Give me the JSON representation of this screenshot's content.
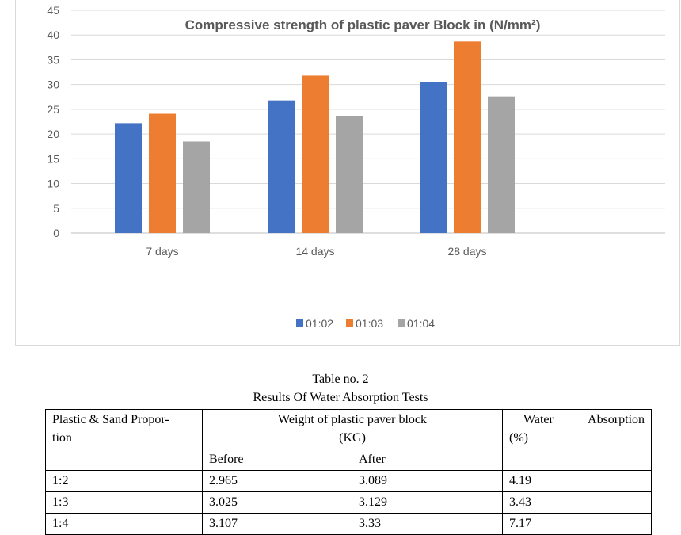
{
  "chart_data": {
    "type": "bar",
    "title": "Compressive strength of plastic paver Block in   (N/mm²)",
    "categories": [
      "7 days",
      "14 days",
      "28 days"
    ],
    "series": [
      {
        "name": "01:02",
        "values": [
          22.2,
          26.8,
          30.5
        ]
      },
      {
        "name": "01:03",
        "values": [
          24.1,
          31.8,
          38.7
        ]
      },
      {
        "name": "01:04",
        "values": [
          18.5,
          23.7,
          27.6
        ]
      }
    ],
    "y_ticks": [
      "0",
      "5",
      "10",
      "15",
      "20",
      "25",
      "30",
      "35",
      "40",
      "45"
    ],
    "ylim": [
      0,
      45
    ],
    "grid": true,
    "legend": "bottom-center",
    "colors": [
      "#4472c4",
      "#ed7d31",
      "#a5a5a5"
    ]
  },
  "table": {
    "caption_number": "Table no. 2",
    "caption_title": "Results Of Water Absorption Tests",
    "header": {
      "proportion_line1": "Plastic & Sand Propor-",
      "proportion_line2": "tion",
      "weight_line1": "Weight of plastic paver block",
      "weight_line2": "(KG)",
      "water_word1": "Water",
      "water_word2": "Absorption",
      "water_line2": "(%)",
      "before": "Before",
      "after": "After"
    },
    "rows": [
      {
        "proportion": "1:2",
        "before": "2.965",
        "after": "3.089",
        "absorption": "4.19"
      },
      {
        "proportion": "1:3",
        "before": "3.025",
        "after": "3.129",
        "absorption": "3.43"
      },
      {
        "proportion": "1:4",
        "before": "3.107",
        "after": "3.33",
        "absorption": "7.17"
      }
    ]
  }
}
